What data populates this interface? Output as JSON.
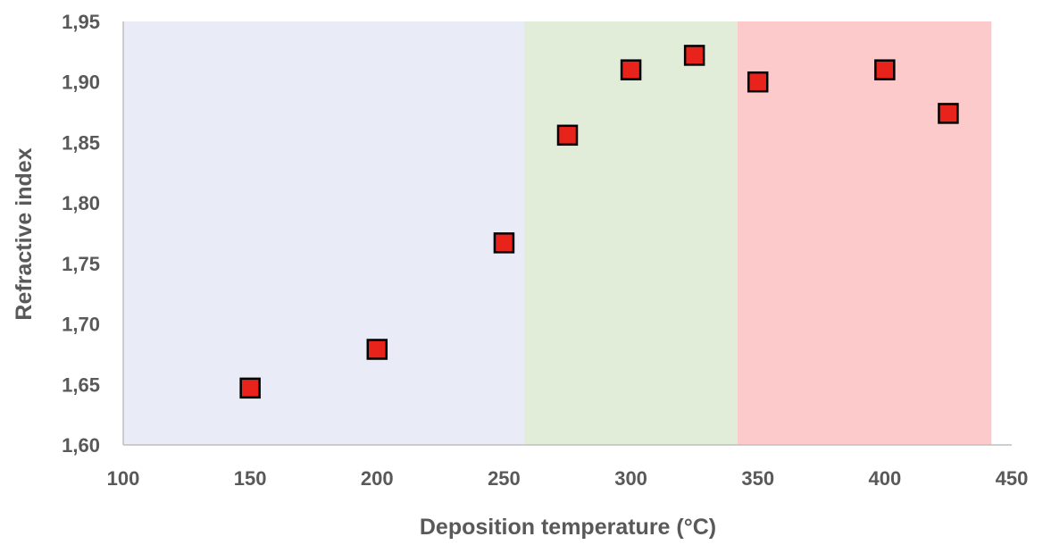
{
  "chart_data": {
    "type": "scatter",
    "title": "",
    "xlabel": "Deposition temperature (°C)",
    "ylabel": "Refractive index",
    "xlim": [
      100,
      450
    ],
    "ylim": [
      1.6,
      1.95
    ],
    "x_ticks": [
      100,
      150,
      200,
      250,
      300,
      350,
      400,
      450
    ],
    "x_tick_labels": [
      "100",
      "150",
      "200",
      "250",
      "300",
      "350",
      "400",
      "450"
    ],
    "y_ticks": [
      1.6,
      1.65,
      1.7,
      1.75,
      1.8,
      1.85,
      1.9,
      1.95
    ],
    "y_tick_labels": [
      "1,60",
      "1,65",
      "1,70",
      "1,75",
      "1,80",
      "1,85",
      "1,90",
      "1,95"
    ],
    "grid": false,
    "legend": "none",
    "marker": "square",
    "marker_color": "#e8231c",
    "regions": [
      {
        "x_start": 100,
        "x_end": 258,
        "color": "#e9ebf6"
      },
      {
        "x_start": 258,
        "x_end": 342,
        "color": "#e2edd9"
      },
      {
        "x_start": 342,
        "x_end": 442,
        "color": "#fccaca"
      }
    ],
    "points": [
      {
        "x": 150,
        "y": 1.647
      },
      {
        "x": 200,
        "y": 1.679
      },
      {
        "x": 250,
        "y": 1.767
      },
      {
        "x": 275,
        "y": 1.856
      },
      {
        "x": 300,
        "y": 1.91
      },
      {
        "x": 325,
        "y": 1.922
      },
      {
        "x": 350,
        "y": 1.9
      },
      {
        "x": 400,
        "y": 1.91
      },
      {
        "x": 425,
        "y": 1.874
      }
    ]
  }
}
